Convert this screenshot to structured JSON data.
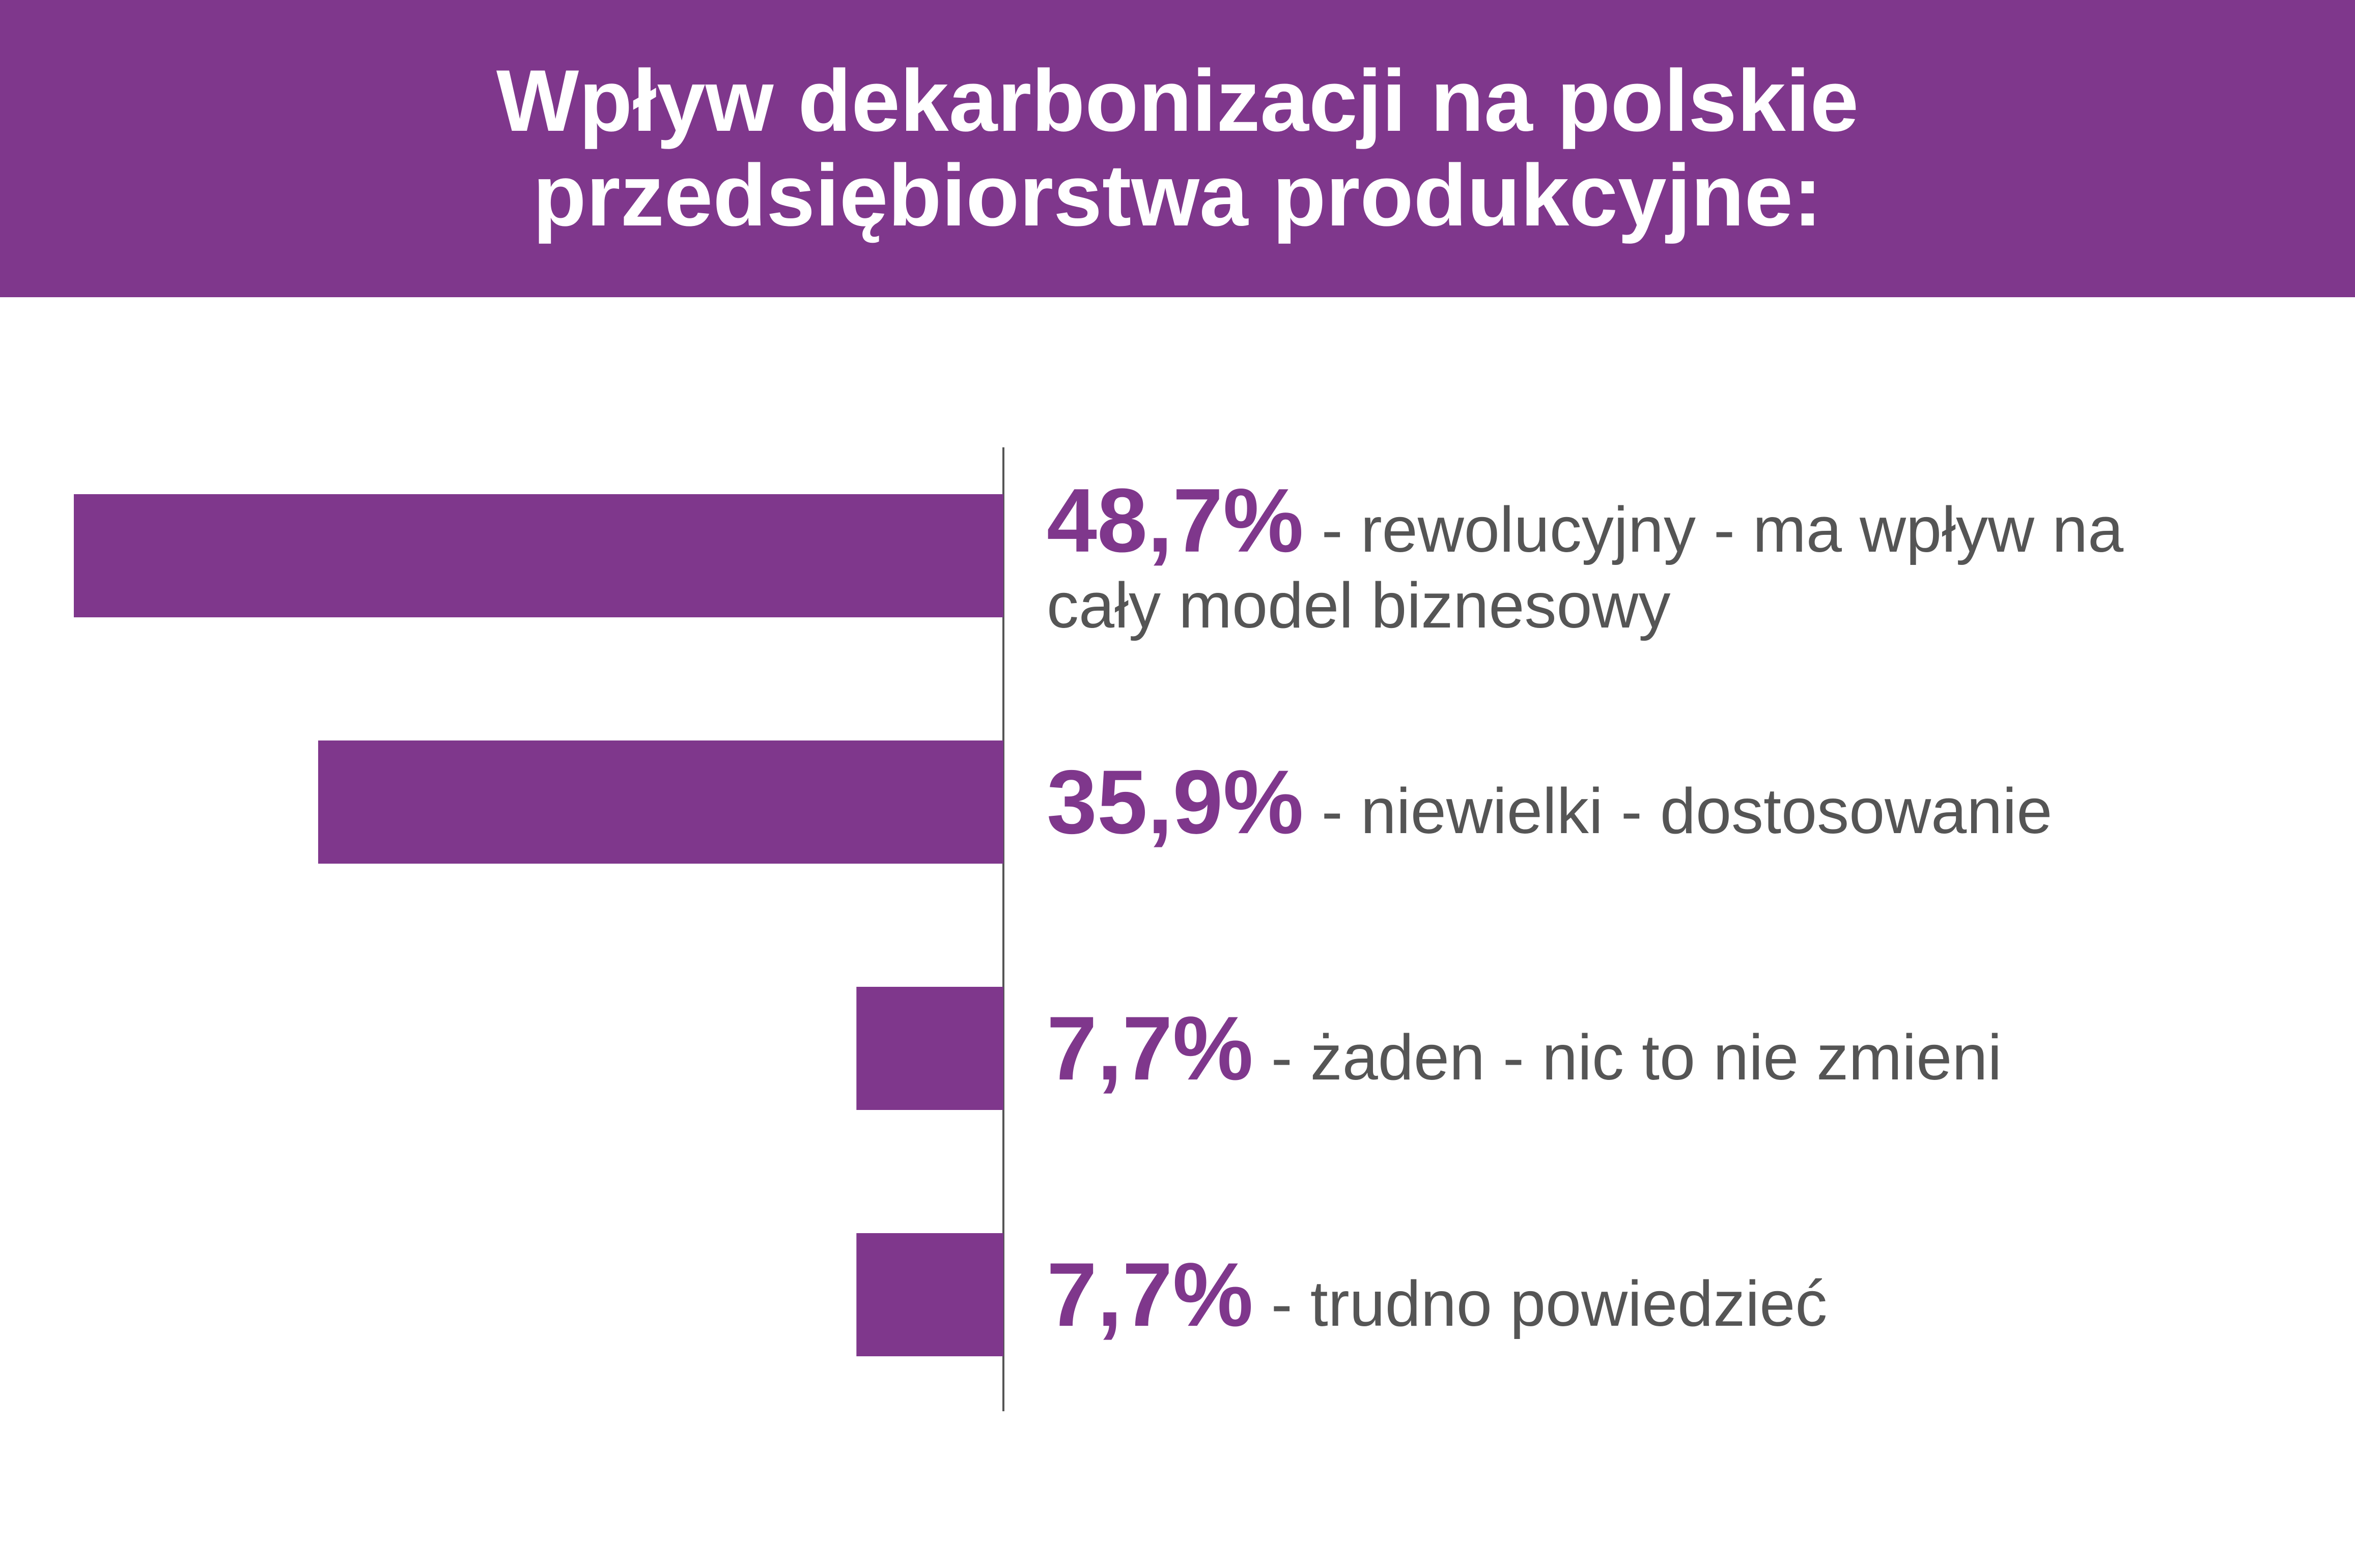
{
  "chart_data": {
    "type": "bar",
    "orientation": "horizontal-left",
    "title": "Wpływ dekarbonizacji na polskie przedsiębiorstwa produkcyjne:",
    "categories": [
      "- rewolucyjny - ma wpływ na cały model biznesowy",
      "- niewielki - dostosowanie",
      "- żaden - nic to nie zmieni",
      "- trudno powiedzieć"
    ],
    "values": [
      48.7,
      35.9,
      7.7,
      7.7
    ],
    "value_labels": [
      "48,7%",
      "35,9%",
      "7,7%",
      "7,7%"
    ],
    "color": "#7f378c"
  }
}
